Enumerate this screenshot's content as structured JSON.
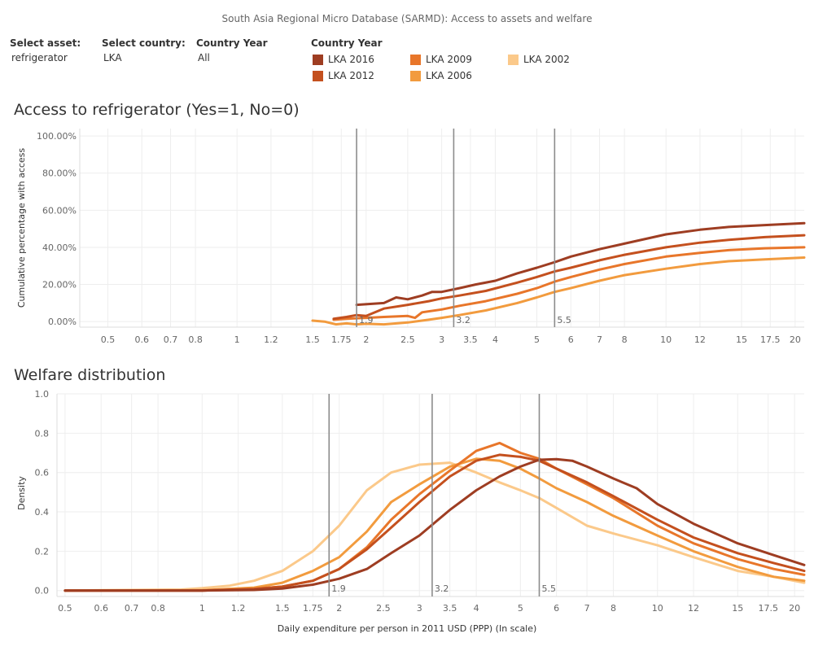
{
  "page": {
    "title": "South Asia Regional Micro Database (SARMD): Access to assets and welfare"
  },
  "filters": {
    "asset": {
      "label": "Select asset:",
      "value": "refrigerator"
    },
    "country": {
      "label": "Select country:",
      "value": "LKA"
    },
    "country_year": {
      "label": "Country Year",
      "value": "All"
    }
  },
  "legend": {
    "title": "Country Year",
    "items": [
      {
        "label": "LKA 2016",
        "color": "#9e3d22"
      },
      {
        "label": "LKA 2012",
        "color": "#c4501e"
      },
      {
        "label": "LKA 2009",
        "color": "#e8762a"
      },
      {
        "label": "LKA 2006",
        "color": "#f29b3e"
      },
      {
        "label": "LKA 2002",
        "color": "#fbc98a"
      }
    ]
  },
  "chart_data": [
    {
      "type": "line",
      "title": "Access to refrigerator (Yes=1, No=0)",
      "ylabel": "Cumulative percentage with access",
      "xlabel": "",
      "x_scale": "log",
      "x_ticks": [
        0.5,
        0.6,
        0.7,
        0.8,
        1,
        1.2,
        1.5,
        1.75,
        2,
        2.5,
        3,
        3.5,
        4,
        5,
        6,
        7,
        8,
        10,
        12,
        15,
        17.5,
        20
      ],
      "x_tick_labels": [
        "0.5",
        "0.6",
        "0.7",
        "0.8",
        "1",
        "1.2",
        "1.5",
        "1.75",
        "2",
        "2.5",
        "3",
        "3.5",
        "4",
        "5",
        "6",
        "7",
        "8",
        "10",
        "12",
        "15",
        "17.5",
        "20"
      ],
      "y_ticks": [
        0,
        20,
        40,
        60,
        80,
        100
      ],
      "y_tick_labels": [
        "0.00%",
        "20.00%",
        "40.00%",
        "60.00%",
        "80.00%",
        "100.00%"
      ],
      "ylim": [
        -3,
        104
      ],
      "xlim": [
        0.43,
        21
      ],
      "reference_lines": [
        {
          "x": 1.9,
          "label": "1.9"
        },
        {
          "x": 3.2,
          "label": "3.2"
        },
        {
          "x": 5.5,
          "label": "5.5"
        }
      ],
      "series": [
        {
          "name": "LKA 2016",
          "color": "#9e3d22",
          "x": [
            1.9,
            2.2,
            2.35,
            2.5,
            2.7,
            2.85,
            3.0,
            3.3,
            3.6,
            4.0,
            4.5,
            5.0,
            5.5,
            6.0,
            7.0,
            8.0,
            10,
            12,
            14,
            17,
            21
          ],
          "y": [
            9,
            10,
            13,
            12,
            14,
            16,
            16,
            18,
            20,
            22,
            26,
            29,
            32,
            35,
            39,
            42,
            47,
            49.5,
            51,
            52,
            53
          ]
        },
        {
          "name": "LKA 2012",
          "color": "#c4501e",
          "x": [
            1.68,
            1.8,
            1.9,
            2.0,
            2.2,
            2.5,
            2.8,
            3.0,
            3.3,
            3.8,
            4.5,
            5.0,
            5.5,
            6.0,
            7.0,
            8.0,
            10,
            12,
            14,
            17,
            21
          ],
          "y": [
            1.5,
            2.5,
            3.5,
            3.0,
            7.0,
            9.0,
            11,
            12.5,
            14,
            16.5,
            21,
            24,
            27,
            29,
            33,
            36,
            40,
            42.5,
            44,
            45.5,
            46.5
          ]
        },
        {
          "name": "LKA 2009",
          "color": "#e8762a",
          "x": [
            1.68,
            1.8,
            1.9,
            2.0,
            2.2,
            2.5,
            2.6,
            2.7,
            3.0,
            3.3,
            3.8,
            4.5,
            5.0,
            5.5,
            6.0,
            7.0,
            8.0,
            10,
            12,
            14,
            17,
            21
          ],
          "y": [
            1.0,
            1.5,
            1.8,
            2.0,
            2.5,
            3.0,
            2.0,
            5.0,
            6.5,
            8.5,
            11,
            15,
            18,
            21.5,
            24,
            28,
            31,
            35,
            37,
            38.5,
            39.5,
            40
          ]
        },
        {
          "name": "LKA 2006",
          "color": "#f29b3e",
          "x": [
            1.5,
            1.6,
            1.7,
            1.8,
            1.9,
            2.0,
            2.2,
            2.5,
            2.8,
            3.0,
            3.3,
            3.8,
            4.5,
            5.0,
            5.5,
            6.0,
            7.0,
            8.0,
            10,
            12,
            14,
            17,
            21
          ],
          "y": [
            0.5,
            0,
            -1.5,
            -1,
            -1.5,
            -1.2,
            -1.5,
            -0.5,
            1,
            2,
            3.5,
            6,
            10,
            13,
            16,
            18,
            22,
            25,
            28.5,
            31,
            32.5,
            33.5,
            34.5
          ]
        }
      ]
    },
    {
      "type": "line",
      "title": "Welfare distribution",
      "ylabel": "Density",
      "xlabel": "Daily expenditure per person in 2011 USD (PPP) (In scale)",
      "x_scale": "log",
      "x_ticks": [
        0.5,
        0.6,
        0.7,
        0.8,
        1,
        1.2,
        1.5,
        1.75,
        2,
        2.5,
        3,
        3.5,
        4,
        5,
        6,
        7,
        8,
        10,
        12,
        15,
        17.5,
        20
      ],
      "x_tick_labels": [
        "0.5",
        "0.6",
        "0.7",
        "0.8",
        "1",
        "1.2",
        "1.5",
        "1.75",
        "2",
        "2.5",
        "3",
        "3.5",
        "4",
        "5",
        "6",
        "7",
        "8",
        "10",
        "12",
        "15",
        "17.5",
        "20"
      ],
      "y_ticks": [
        0,
        0.2,
        0.4,
        0.6,
        0.8,
        1.0
      ],
      "y_tick_labels": [
        "0.0",
        "0.2",
        "0.4",
        "0.6",
        "0.8",
        "1.0"
      ],
      "ylim": [
        -0.03,
        1.0
      ],
      "xlim": [
        0.48,
        21
      ],
      "reference_lines": [
        {
          "x": 1.9,
          "label": "1.9"
        },
        {
          "x": 3.2,
          "label": "3.2"
        },
        {
          "x": 5.5,
          "label": "5.5"
        }
      ],
      "series": [
        {
          "name": "LKA 2016",
          "color": "#9e3d22",
          "x": [
            0.5,
            1.0,
            1.3,
            1.5,
            1.75,
            2.0,
            2.3,
            2.6,
            3.0,
            3.5,
            4.0,
            4.5,
            5.0,
            5.5,
            6.0,
            6.5,
            7.0,
            8.0,
            9.0,
            10,
            12,
            15,
            18,
            21
          ],
          "y": [
            0,
            0,
            0.003,
            0.01,
            0.03,
            0.06,
            0.11,
            0.19,
            0.28,
            0.41,
            0.51,
            0.58,
            0.63,
            0.665,
            0.668,
            0.66,
            0.63,
            0.57,
            0.52,
            0.44,
            0.34,
            0.24,
            0.18,
            0.13
          ]
        },
        {
          "name": "LKA 2012",
          "color": "#c4501e",
          "x": [
            0.5,
            1.0,
            1.3,
            1.5,
            1.75,
            2.0,
            2.3,
            2.6,
            3.0,
            3.5,
            4.0,
            4.5,
            5.0,
            5.5,
            6.0,
            7.0,
            8.0,
            10,
            12,
            15,
            18,
            21
          ],
          "y": [
            0,
            0,
            0.008,
            0.02,
            0.05,
            0.11,
            0.21,
            0.32,
            0.45,
            0.58,
            0.66,
            0.69,
            0.68,
            0.66,
            0.62,
            0.55,
            0.48,
            0.36,
            0.27,
            0.19,
            0.14,
            0.1
          ]
        },
        {
          "name": "LKA 2009",
          "color": "#e8762a",
          "x": [
            0.5,
            1.0,
            1.3,
            1.5,
            1.75,
            2.0,
            2.3,
            2.6,
            3.0,
            3.5,
            4.0,
            4.5,
            5.0,
            5.5,
            6.0,
            7.0,
            8.0,
            10,
            12,
            15,
            18,
            21
          ],
          "y": [
            0,
            0,
            0.008,
            0.02,
            0.05,
            0.11,
            0.22,
            0.36,
            0.49,
            0.61,
            0.71,
            0.75,
            0.7,
            0.67,
            0.62,
            0.54,
            0.47,
            0.33,
            0.24,
            0.16,
            0.11,
            0.08
          ]
        },
        {
          "name": "LKA 2006",
          "color": "#f29b3e",
          "x": [
            0.5,
            1.0,
            1.3,
            1.5,
            1.75,
            2.0,
            2.3,
            2.6,
            3.0,
            3.5,
            4.0,
            4.5,
            5.0,
            5.5,
            6.0,
            7.0,
            8.0,
            10,
            12,
            15,
            18,
            21
          ],
          "y": [
            0,
            0.002,
            0.015,
            0.04,
            0.1,
            0.17,
            0.3,
            0.45,
            0.54,
            0.63,
            0.67,
            0.66,
            0.62,
            0.57,
            0.52,
            0.45,
            0.38,
            0.28,
            0.2,
            0.12,
            0.07,
            0.05
          ]
        },
        {
          "name": "LKA 2002",
          "color": "#fbc98a",
          "x": [
            0.5,
            0.9,
            1.0,
            1.15,
            1.3,
            1.5,
            1.75,
            2.0,
            2.3,
            2.6,
            3.0,
            3.5,
            4.0,
            4.5,
            5.0,
            5.5,
            6.0,
            7.0,
            8.0,
            10,
            12,
            15,
            18,
            21
          ],
          "y": [
            0,
            0.005,
            0.012,
            0.025,
            0.05,
            0.1,
            0.2,
            0.33,
            0.51,
            0.6,
            0.64,
            0.65,
            0.6,
            0.55,
            0.51,
            0.47,
            0.42,
            0.33,
            0.29,
            0.23,
            0.17,
            0.1,
            0.07,
            0.04
          ]
        }
      ]
    }
  ]
}
